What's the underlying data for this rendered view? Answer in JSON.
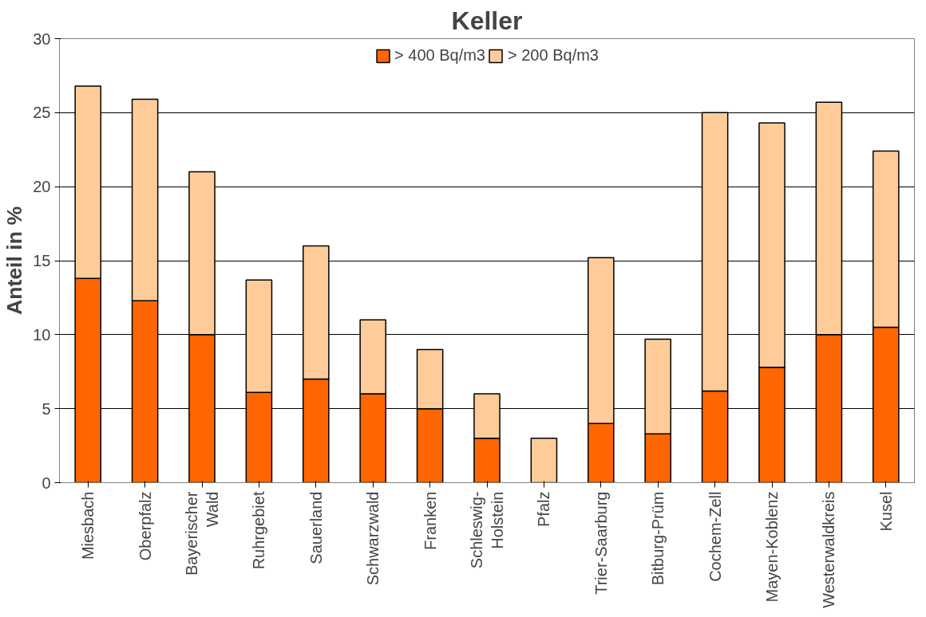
{
  "chart_data": {
    "type": "bar",
    "title": "Keller",
    "ylabel": "Anteil in %",
    "stacked": true,
    "categories": [
      "Miesbach",
      "Oberpfalz",
      "Bayerischer\nWald",
      "Ruhrgebiet",
      "Sauerland",
      "Schwarzwald",
      "Franken",
      "Schleswig-\nHolstein",
      "Pfalz",
      "Trier-Saarburg",
      "Bitburg-Prüm",
      "Cochem-Zell",
      "Mayen-Koblenz",
      "Westerwaldkreis",
      "Kusel"
    ],
    "series": [
      {
        "name": "> 400 Bq/m3",
        "color": "#ff6600",
        "values": [
          13.8,
          12.3,
          10.0,
          6.1,
          7.0,
          6.0,
          5.0,
          3.0,
          0,
          4.0,
          3.3,
          6.2,
          7.8,
          10.0,
          10.5
        ]
      },
      {
        "name": "> 200 Bq/m3",
        "color": "#ffcc99",
        "values": [
          13.0,
          13.6,
          11.0,
          7.6,
          9.0,
          5.0,
          4.0,
          3.0,
          3.0,
          11.2,
          6.4,
          18.8,
          16.5,
          15.7,
          11.9
        ]
      }
    ],
    "ylim": [
      0,
      30
    ],
    "yticks": [
      0,
      5,
      10,
      15,
      20,
      25,
      30
    ],
    "grid": "y",
    "legend": "top"
  }
}
